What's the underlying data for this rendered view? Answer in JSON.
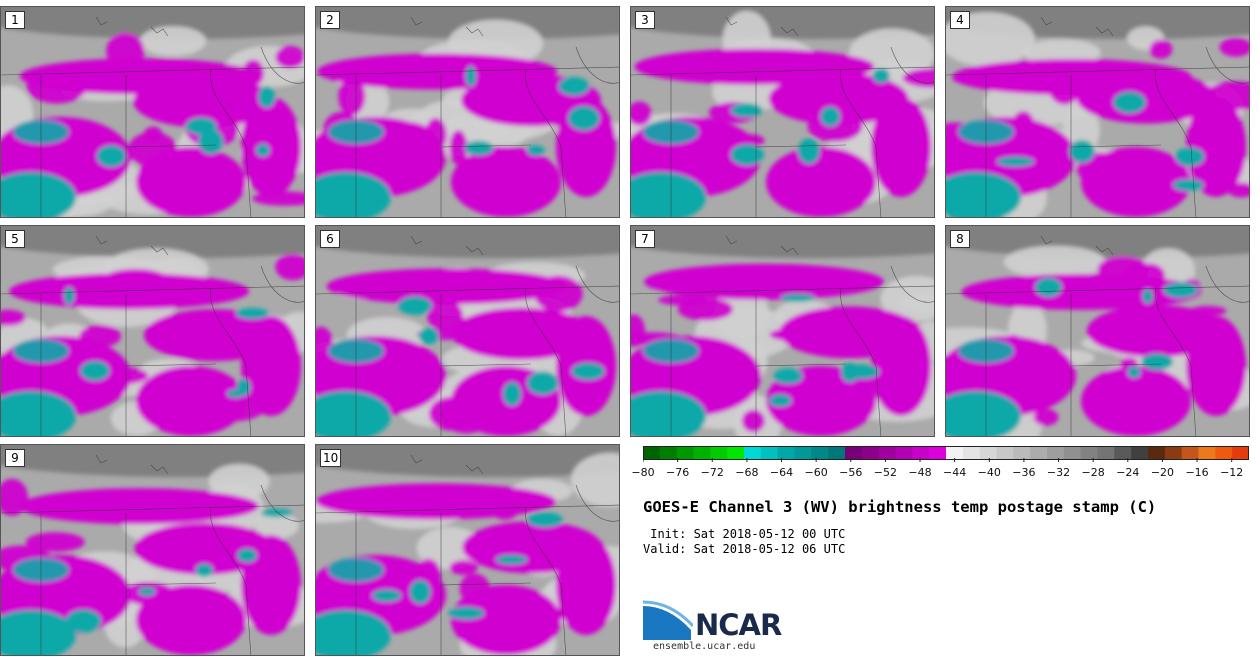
{
  "chart_data": {
    "type": "heatmap",
    "title": "GOES-E Channel 3 (WV) brightness temp postage stamp (C)",
    "panels": [
      "1",
      "2",
      "3",
      "4",
      "5",
      "6",
      "7",
      "8",
      "9",
      "10"
    ],
    "colorbar": {
      "unit": "C",
      "ticks": [
        "-80",
        "-76",
        "-72",
        "-68",
        "-64",
        "-60",
        "-56",
        "-52",
        "-48",
        "-44",
        "-40",
        "-36",
        "-32",
        "-28",
        "-24",
        "-20",
        "-16",
        "-12"
      ],
      "range": [
        -80,
        -10
      ],
      "step": 2,
      "colors": [
        "#006400",
        "#007e00",
        "#009800",
        "#00b200",
        "#00cc00",
        "#00e600",
        "#00d8d8",
        "#00c0c0",
        "#00a8a8",
        "#009898",
        "#008888",
        "#007878",
        "#780078",
        "#8c008c",
        "#a000a0",
        "#b400b4",
        "#c800c8",
        "#dc00dc",
        "#f2f2f2",
        "#e4e4e4",
        "#d6d6d6",
        "#c8c8c8",
        "#bababa",
        "#acacac",
        "#9e9e9e",
        "#909090",
        "#828282",
        "#747474",
        "#5a5a5a",
        "#404040",
        "#5a2a10",
        "#8c3a14",
        "#c4561c",
        "#ec7a1c",
        "#f05a10",
        "#e43c0c"
      ]
    }
  },
  "info": {
    "init": " Init: Sat 2018-05-12 00 UTC",
    "valid": "Valid: Sat 2018-05-12 06 UTC"
  },
  "logo": {
    "text": "NCAR",
    "url": "ensemble.ucar.edu",
    "blue": "#1a78c2",
    "light_blue": "#6fb4e6"
  },
  "map_colors": {
    "bright_magenta": "#d000d0",
    "teal": "#10a8a8",
    "light_gray": "#d0d0d0",
    "mid_gray": "#aaaaaa",
    "dark_gray": "#808080"
  }
}
